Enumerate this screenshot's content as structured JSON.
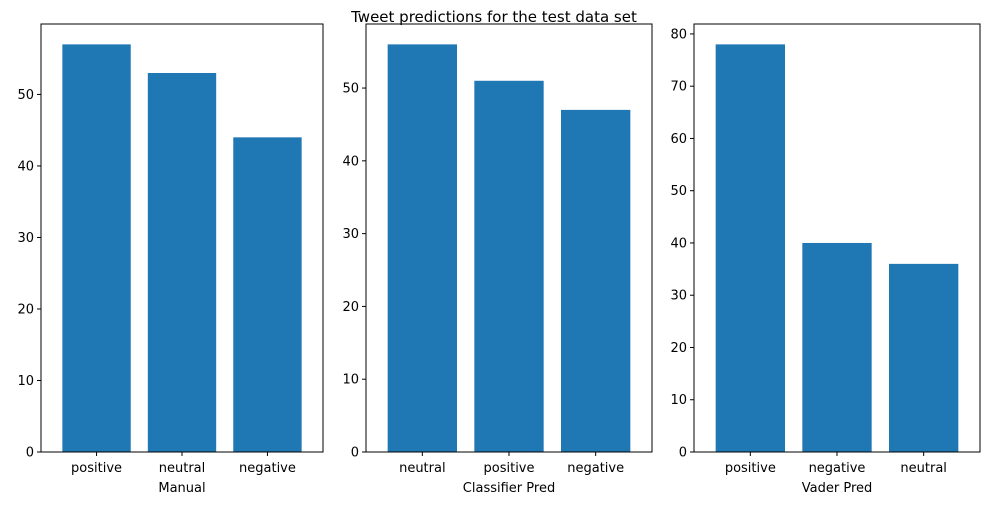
{
  "figure": {
    "title": "Tweet predictions for the test data set"
  },
  "chart_data": [
    {
      "type": "bar",
      "categories": [
        "positive",
        "neutral",
        "negative"
      ],
      "values": [
        57,
        53,
        44
      ],
      "xlabel": "Manual",
      "ylabel": "",
      "ylim": [
        0,
        59.85
      ],
      "yticks": [
        0,
        10,
        20,
        30,
        40,
        50
      ],
      "grid": false,
      "color": "#1f77b4"
    },
    {
      "type": "bar",
      "categories": [
        "neutral",
        "positive",
        "negative"
      ],
      "values": [
        56,
        51,
        47
      ],
      "xlabel": "Classifier Pred",
      "ylabel": "",
      "ylim": [
        0,
        58.8
      ],
      "yticks": [
        0,
        10,
        20,
        30,
        40,
        50
      ],
      "grid": false,
      "color": "#1f77b4"
    },
    {
      "type": "bar",
      "categories": [
        "positive",
        "negative",
        "neutral"
      ],
      "values": [
        78,
        40,
        36
      ],
      "xlabel": "Vader Pred",
      "ylabel": "",
      "ylim": [
        0,
        81.9
      ],
      "yticks": [
        0,
        10,
        20,
        30,
        40,
        50,
        60,
        70,
        80
      ],
      "grid": false,
      "color": "#1f77b4"
    }
  ]
}
